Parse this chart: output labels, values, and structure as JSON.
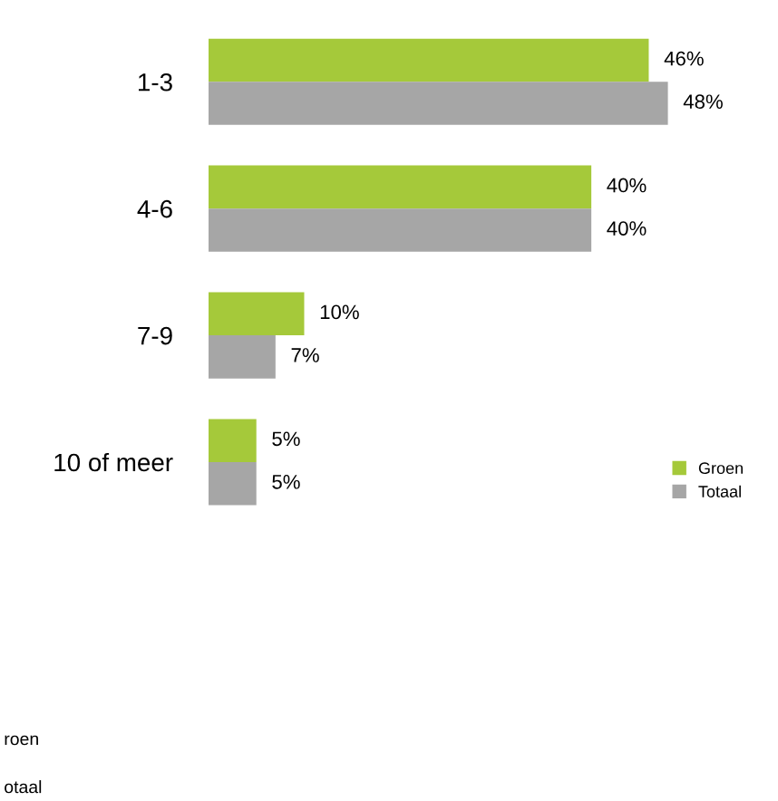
{
  "chart_data": {
    "type": "bar",
    "orientation": "horizontal",
    "categories": [
      "1-3",
      "4-6",
      "7-9",
      "10 of meer"
    ],
    "series": [
      {
        "name": "Groen",
        "color": "#a5c93a",
        "values": [
          46,
          40,
          10,
          5
        ],
        "value_labels": [
          "46%",
          "40%",
          "10%",
          "5%"
        ]
      },
      {
        "name": "Totaal",
        "color": "#a6a6a6",
        "values": [
          48,
          40,
          7,
          5
        ],
        "value_labels": [
          "48%",
          "40%",
          "7%",
          "5%"
        ]
      }
    ],
    "legend": "right",
    "annotations": [
      "roen",
      "otaal"
    ]
  }
}
